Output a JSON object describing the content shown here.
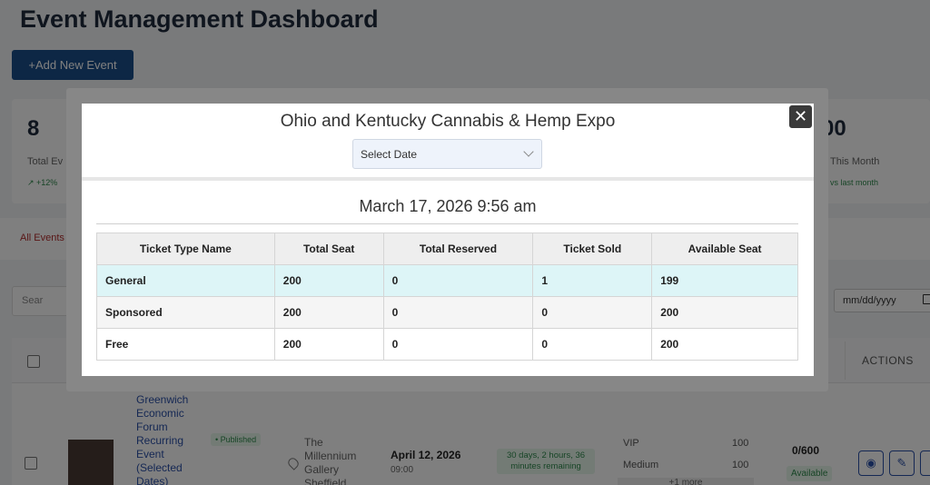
{
  "dashboard": {
    "title": "Event Management Dashboard",
    "add_button": "+Add New Event",
    "stats": {
      "left_value": "8",
      "left_label": "Total Ev",
      "left_change": "↗ +12%",
      "right_value": "00",
      "right_label": "This Month",
      "right_change": "vs last month"
    },
    "filter_all": "All Events",
    "search_placeholder": "Sear",
    "date_placeholder": "mm/dd/yyyy",
    "table": {
      "actions_header": "ACTIONS",
      "row": {
        "name": "Greenwich Economic Forum Recurring Event (Selected Dates)",
        "status": "• Published",
        "venue": "The Millennium Gallery Sheffield",
        "date": "April 12, 2026",
        "time": "09:00",
        "remaining": "30 days, 2 hours, 36 minutes remaining",
        "tiers": [
          {
            "name": "VIP",
            "value": "100"
          },
          {
            "name": "Medium",
            "value": "100"
          }
        ],
        "more": "+1 more",
        "capacity": "0/600",
        "availability": "Available"
      }
    }
  },
  "modal": {
    "title": "Ohio and Kentucky Cannabis & Hemp Expo",
    "select_date_label": "Select Date",
    "datetime": "March 17, 2026 9:56 am",
    "close_symbol": "✕",
    "columns": [
      "Ticket Type Name",
      "Total Seat",
      "Total Reserved",
      "Ticket Sold",
      "Available Seat"
    ],
    "rows": [
      [
        "General",
        "200",
        "0",
        "1",
        "199"
      ],
      [
        "Sponsored",
        "200",
        "0",
        "0",
        "200"
      ],
      [
        "Free",
        "200",
        "0",
        "0",
        "200"
      ]
    ]
  }
}
